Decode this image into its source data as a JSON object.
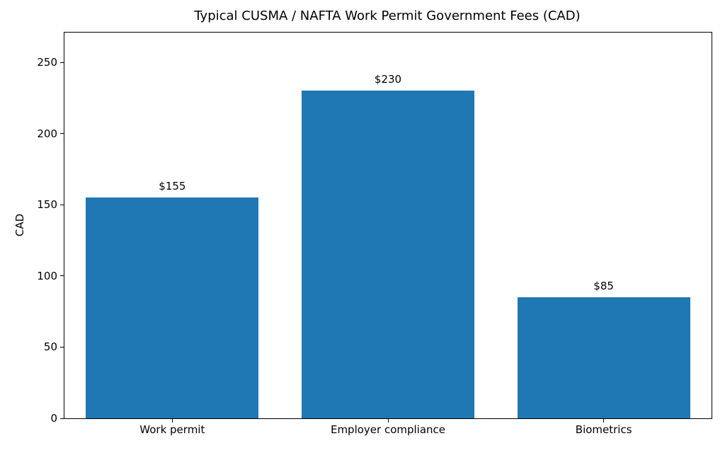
{
  "chart_data": {
    "type": "bar",
    "title": "Typical CUSMA / NAFTA Work Permit Government Fees (CAD)",
    "xlabel": "",
    "ylabel": "CAD",
    "categories": [
      "Work permit",
      "Employer compliance",
      "Biometrics"
    ],
    "values": [
      155,
      230,
      85
    ],
    "bar_labels": [
      "$155",
      "$230",
      "$85"
    ],
    "yticks": [
      0,
      50,
      100,
      150,
      200,
      250
    ],
    "ylim": [
      0,
      271
    ],
    "bar_color": "#1f77b4",
    "grid": false,
    "legend": false,
    "bar_width_fraction": 0.8
  }
}
